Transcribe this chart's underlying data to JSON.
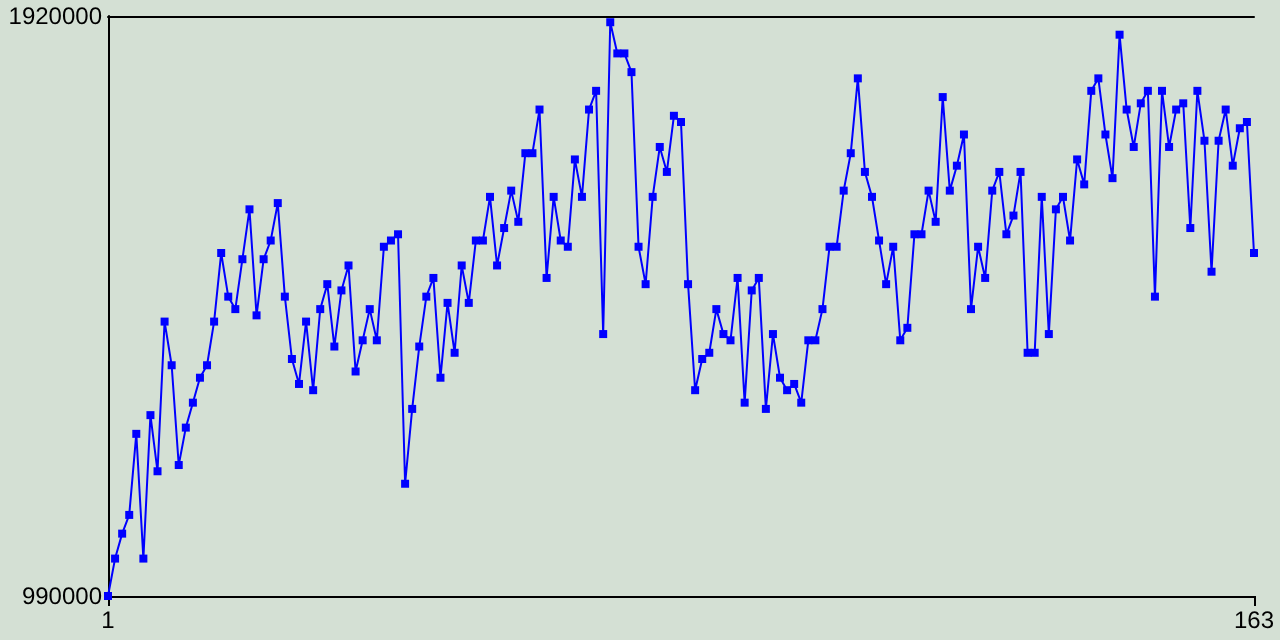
{
  "chart_data": {
    "type": "line",
    "marker": "square",
    "xlim": [
      1,
      163
    ],
    "xticks": [
      1,
      163
    ],
    "ylim": [
      990000,
      1920000
    ],
    "yticks": [
      990000,
      1920000
    ],
    "x": [
      1,
      2,
      3,
      4,
      5,
      6,
      7,
      8,
      9,
      10,
      11,
      12,
      13,
      14,
      15,
      16,
      17,
      18,
      19,
      20,
      21,
      22,
      23,
      24,
      25,
      26,
      27,
      28,
      29,
      30,
      31,
      32,
      33,
      34,
      35,
      36,
      37,
      38,
      39,
      40,
      41,
      42,
      43,
      44,
      45,
      46,
      47,
      48,
      49,
      50,
      51,
      52,
      53,
      54,
      55,
      56,
      57,
      58,
      59,
      60,
      61,
      62,
      63,
      64,
      65,
      66,
      67,
      68,
      69,
      70,
      71,
      72,
      73,
      74,
      75,
      76,
      77,
      78,
      79,
      80,
      81,
      82,
      83,
      84,
      85,
      86,
      87,
      88,
      89,
      90,
      91,
      92,
      93,
      94,
      95,
      96,
      97,
      98,
      99,
      100,
      101,
      102,
      103,
      104,
      105,
      106,
      107,
      108,
      109,
      110,
      111,
      112,
      113,
      114,
      115,
      116,
      117,
      118,
      119,
      120,
      121,
      122,
      123,
      124,
      125,
      126,
      127,
      128,
      129,
      130,
      131,
      132,
      133,
      134,
      135,
      136,
      137,
      138,
      139,
      140,
      141,
      142,
      143,
      144,
      145,
      146,
      147,
      148,
      149,
      150,
      151,
      152,
      153,
      154,
      155,
      156,
      157,
      158,
      159,
      160,
      161,
      162,
      163
    ],
    "series": [
      {
        "color": "#0000ff",
        "values": [
          990000,
          1050000,
          1090000,
          1120000,
          1250000,
          1050000,
          1280000,
          1190000,
          1430000,
          1360000,
          1200000,
          1260000,
          1300000,
          1340000,
          1360000,
          1430000,
          1540000,
          1470000,
          1450000,
          1530000,
          1610000,
          1440000,
          1530000,
          1560000,
          1620000,
          1470000,
          1370000,
          1330000,
          1430000,
          1320000,
          1450000,
          1490000,
          1390000,
          1480000,
          1520000,
          1350000,
          1400000,
          1450000,
          1400000,
          1550000,
          1560000,
          1570000,
          1170000,
          1290000,
          1390000,
          1470000,
          1500000,
          1340000,
          1460000,
          1380000,
          1520000,
          1460000,
          1560000,
          1560000,
          1630000,
          1520000,
          1580000,
          1640000,
          1590000,
          1700000,
          1700000,
          1770000,
          1500000,
          1630000,
          1560000,
          1550000,
          1690000,
          1630000,
          1770000,
          1800000,
          1410000,
          1910000,
          1860000,
          1860000,
          1830000,
          1550000,
          1490000,
          1630000,
          1710000,
          1670000,
          1760000,
          1750000,
          1490000,
          1320000,
          1370000,
          1380000,
          1450000,
          1410000,
          1400000,
          1500000,
          1300000,
          1480000,
          1500000,
          1290000,
          1410000,
          1340000,
          1320000,
          1330000,
          1300000,
          1400000,
          1400000,
          1450000,
          1550000,
          1550000,
          1640000,
          1700000,
          1820000,
          1670000,
          1630000,
          1560000,
          1490000,
          1550000,
          1400000,
          1420000,
          1570000,
          1570000,
          1640000,
          1590000,
          1790000,
          1640000,
          1680000,
          1730000,
          1450000,
          1550000,
          1500000,
          1640000,
          1670000,
          1570000,
          1600000,
          1670000,
          1380000,
          1380000,
          1630000,
          1410000,
          1610000,
          1630000,
          1560000,
          1690000,
          1650000,
          1800000,
          1820000,
          1730000,
          1660000,
          1890000,
          1770000,
          1710000,
          1780000,
          1800000,
          1470000,
          1800000,
          1710000,
          1770000,
          1780000,
          1580000,
          1800000,
          1720000,
          1510000,
          1720000,
          1770000,
          1680000,
          1740000,
          1750000,
          1540000
        ]
      }
    ]
  }
}
